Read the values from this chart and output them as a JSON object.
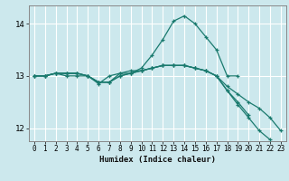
{
  "title": "",
  "xlabel": "Humidex (Indice chaleur)",
  "background_color": "#cce8ed",
  "grid_color": "#ffffff",
  "line_color": "#1a7a6e",
  "xlim": [
    -0.5,
    23.5
  ],
  "ylim": [
    11.75,
    14.35
  ],
  "xticks": [
    0,
    1,
    2,
    3,
    4,
    5,
    6,
    7,
    8,
    9,
    10,
    11,
    12,
    13,
    14,
    15,
    16,
    17,
    18,
    19,
    20,
    21,
    22,
    23
  ],
  "yticks": [
    12,
    13,
    14
  ],
  "lines": [
    {
      "x": [
        0,
        1,
        2,
        3,
        4,
        5,
        6,
        7,
        8,
        9,
        10,
        11,
        12,
        13,
        14,
        15,
        16,
        17,
        18,
        19
      ],
      "y": [
        13.0,
        13.0,
        13.05,
        13.0,
        13.0,
        13.0,
        12.85,
        13.0,
        13.05,
        13.05,
        13.15,
        13.4,
        13.7,
        14.05,
        14.15,
        14.0,
        13.75,
        13.5,
        13.0,
        13.0
      ]
    },
    {
      "x": [
        0,
        1,
        2,
        3,
        4,
        5,
        6,
        7,
        8,
        9,
        10,
        11,
        12,
        13,
        14,
        15,
        16,
        17,
        18,
        19,
        20,
        21,
        22,
        23
      ],
      "y": [
        13.0,
        13.0,
        13.05,
        13.05,
        13.05,
        13.0,
        12.88,
        12.88,
        13.05,
        13.1,
        13.1,
        13.15,
        13.2,
        13.2,
        13.2,
        13.15,
        13.1,
        13.0,
        12.8,
        12.65,
        12.5,
        12.38,
        12.2,
        11.95
      ]
    },
    {
      "x": [
        0,
        1,
        2,
        3,
        4,
        5,
        6,
        7,
        8,
        9,
        10,
        11,
        12,
        13,
        14,
        15,
        16,
        17,
        18,
        19,
        20,
        21,
        22
      ],
      "y": [
        13.0,
        13.0,
        13.05,
        13.05,
        13.05,
        13.0,
        12.88,
        12.88,
        13.0,
        13.05,
        13.1,
        13.15,
        13.2,
        13.2,
        13.2,
        13.15,
        13.1,
        13.0,
        12.72,
        12.45,
        12.2,
        11.95,
        11.78
      ]
    },
    {
      "x": [
        0,
        1,
        2,
        3,
        4,
        5,
        6,
        7,
        8,
        9,
        10,
        11,
        12,
        13,
        14,
        15,
        16,
        17,
        18,
        19,
        20
      ],
      "y": [
        13.0,
        13.0,
        13.05,
        13.05,
        13.05,
        13.0,
        12.88,
        12.88,
        13.0,
        13.05,
        13.1,
        13.15,
        13.2,
        13.2,
        13.2,
        13.15,
        13.1,
        13.0,
        12.72,
        12.5,
        12.25
      ]
    }
  ]
}
